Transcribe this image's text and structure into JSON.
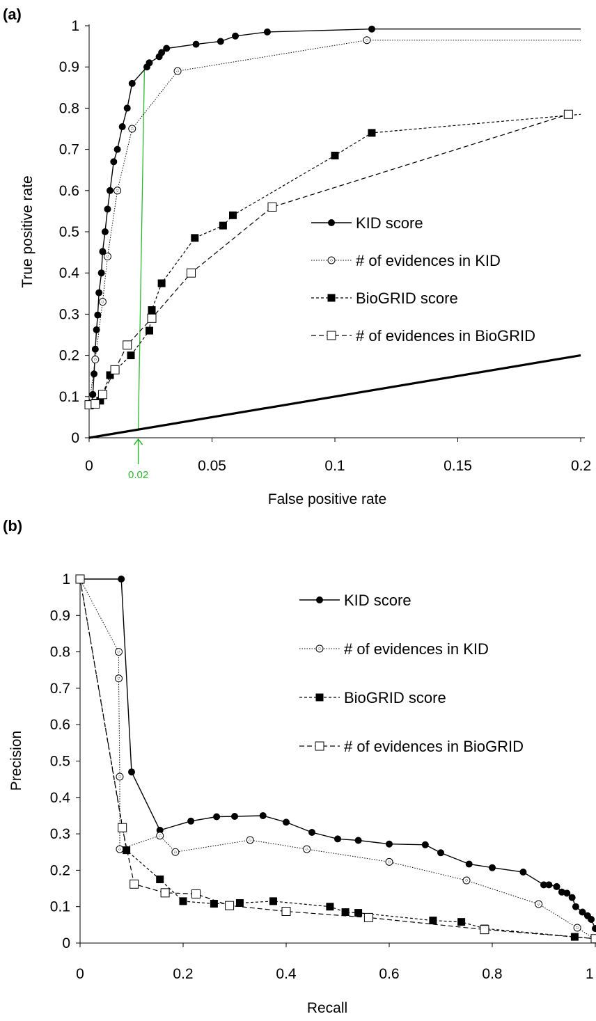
{
  "chart_data": [
    {
      "type": "line",
      "panel_label": "(a)",
      "xlabel": "False positive rate",
      "ylabel": "True positive rate",
      "xlim": [
        0,
        0.2
      ],
      "ylim": [
        0,
        1
      ],
      "x_ticks": [
        "0",
        "0.05",
        "0.1",
        "0.15",
        "0.2"
      ],
      "y_ticks": [
        "0",
        "0.1",
        "0.2",
        "0.3",
        "0.4",
        "0.5",
        "0.6",
        "0.7",
        "0.8",
        "0.9",
        "1"
      ],
      "legend_position": "right",
      "annotation": {
        "text": "0.02",
        "x": 0.02,
        "color": "#2db52d"
      },
      "series": [
        {
          "name": "KID score",
          "style": "solid",
          "marker": "filled-circle",
          "x": [
            0,
            0.0005,
            0.001,
            0.0015,
            0.002,
            0.0025,
            0.003,
            0.0035,
            0.004,
            0.005,
            0.0055,
            0.0065,
            0.0075,
            0.0085,
            0.01,
            0.0115,
            0.0135,
            0.0155,
            0.0175,
            0.0235,
            0.0245,
            0.0285,
            0.0295,
            0.0315,
            0.0435,
            0.0535,
            0.0595,
            0.0725,
            0.115,
            0.2
          ],
          "y": [
            0.08,
            0.081,
            0.082,
            0.105,
            0.155,
            0.215,
            0.262,
            0.298,
            0.352,
            0.4,
            0.452,
            0.5,
            0.555,
            0.6,
            0.67,
            0.7,
            0.755,
            0.8,
            0.86,
            0.9,
            0.91,
            0.925,
            0.935,
            0.945,
            0.955,
            0.962,
            0.975,
            0.985,
            0.992,
            0.992
          ]
        },
        {
          "name": "# of evidences in KID",
          "style": "dotted",
          "marker": "open-circle",
          "x": [
            0,
            0.0025,
            0.0055,
            0.0075,
            0.0115,
            0.0175,
            0.036,
            0.113,
            0.2
          ],
          "y": [
            0.08,
            0.19,
            0.33,
            0.44,
            0.6,
            0.75,
            0.89,
            0.965,
            0.965
          ]
        },
        {
          "name": "BioGRID score",
          "style": "dashed",
          "marker": "filled-square",
          "x": [
            0,
            0.0025,
            0.0045,
            0.0085,
            0.017,
            0.0245,
            0.0255,
            0.0295,
            0.043,
            0.0545,
            0.0585,
            0.1,
            0.115,
            0.2
          ],
          "y": [
            0.08,
            0.085,
            0.09,
            0.152,
            0.2,
            0.26,
            0.31,
            0.375,
            0.485,
            0.515,
            0.54,
            0.685,
            0.74,
            0.785
          ]
        },
        {
          "name": "# of evidences in BioGRID",
          "style": "long-dashed",
          "marker": "open-square",
          "x": [
            0,
            0.0025,
            0.0055,
            0.0105,
            0.0155,
            0.0255,
            0.0415,
            0.0745,
            0.195
          ],
          "y": [
            0.08,
            0.082,
            0.105,
            0.165,
            0.225,
            0.29,
            0.4,
            0.56,
            0.785
          ]
        },
        {
          "name": "",
          "style": "thick-solid",
          "marker": "none",
          "x": [
            0,
            0.2
          ],
          "y": [
            0,
            0.2
          ]
        }
      ]
    },
    {
      "type": "line",
      "panel_label": "(b)",
      "xlabel": "Recall",
      "ylabel": "Precision",
      "xlim": [
        0,
        1
      ],
      "ylim": [
        0,
        1
      ],
      "x_ticks": [
        "0",
        "0.2",
        "0.4",
        "0.6",
        "0.8",
        "1"
      ],
      "y_ticks": [
        "0",
        "0.1",
        "0.2",
        "0.3",
        "0.4",
        "0.5",
        "0.6",
        "0.7",
        "0.8",
        "0.9",
        "1"
      ],
      "legend_position": "top-right",
      "series": [
        {
          "name": "KID score",
          "style": "solid",
          "marker": "filled-circle",
          "x": [
            0,
            0.08,
            0.1,
            0.155,
            0.215,
            0.265,
            0.3,
            0.355,
            0.4,
            0.45,
            0.5,
            0.54,
            0.6,
            0.67,
            0.7,
            0.755,
            0.8,
            0.86,
            0.9,
            0.91,
            0.925,
            0.935,
            0.945,
            0.955,
            0.962,
            0.975,
            0.985,
            0.992,
            1.0
          ],
          "y": [
            1.0,
            1.0,
            0.47,
            0.31,
            0.335,
            0.347,
            0.348,
            0.35,
            0.332,
            0.304,
            0.286,
            0.282,
            0.272,
            0.27,
            0.248,
            0.217,
            0.207,
            0.195,
            0.16,
            0.16,
            0.155,
            0.14,
            0.137,
            0.125,
            0.1,
            0.085,
            0.075,
            0.065,
            0.04
          ]
        },
        {
          "name": "# of evidences in KID",
          "style": "dotted",
          "marker": "open-circle",
          "x": [
            0,
            0.075,
            0.075,
            0.077,
            0.077,
            0.155,
            0.185,
            0.33,
            0.44,
            0.6,
            0.75,
            0.89,
            0.965,
            1.0
          ],
          "y": [
            1.0,
            0.8,
            0.727,
            0.457,
            0.258,
            0.295,
            0.25,
            0.283,
            0.258,
            0.223,
            0.172,
            0.107,
            0.042,
            0.01
          ]
        },
        {
          "name": "BioGRID score",
          "style": "dashed",
          "marker": "filled-square",
          "x": [
            0,
            0.09,
            0.155,
            0.2,
            0.26,
            0.31,
            0.375,
            0.485,
            0.515,
            0.54,
            0.685,
            0.74,
            0.785,
            0.96,
            1.0
          ],
          "y": [
            1.0,
            0.255,
            0.175,
            0.115,
            0.108,
            0.11,
            0.115,
            0.1,
            0.085,
            0.083,
            0.062,
            0.058,
            0.04,
            0.017,
            0.012
          ]
        },
        {
          "name": "# of evidences in BioGRID",
          "style": "long-dashed",
          "marker": "open-square",
          "x": [
            0,
            0.082,
            0.105,
            0.165,
            0.225,
            0.29,
            0.4,
            0.56,
            0.785,
            1.0
          ],
          "y": [
            1.0,
            0.317,
            0.162,
            0.138,
            0.135,
            0.103,
            0.087,
            0.07,
            0.037,
            0.012
          ]
        }
      ]
    }
  ]
}
